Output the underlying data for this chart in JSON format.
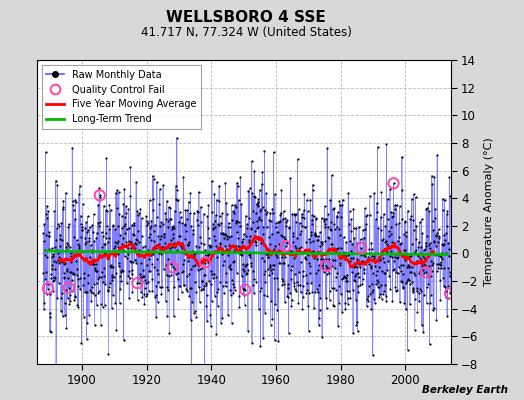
{
  "title": "WELLSBORO 4 SSE",
  "subtitle": "41.717 N, 77.324 W (United States)",
  "ylabel": "Temperature Anomaly (°C)",
  "attribution": "Berkeley Earth",
  "x_start": 1887,
  "x_end": 2014,
  "xlim": [
    1886,
    2014
  ],
  "ylim": [
    -8,
    14
  ],
  "yticks": [
    -8,
    -6,
    -4,
    -2,
    0,
    2,
    4,
    6,
    8,
    10,
    12,
    14
  ],
  "xticks": [
    1900,
    1920,
    1940,
    1960,
    1980,
    2000
  ],
  "bg_color": "#d8d8d8",
  "plot_bg_color": "#ffffff",
  "raw_line_color": "#5555ff",
  "raw_dot_color": "#000000",
  "moving_avg_color": "#ff0000",
  "trend_color": "#00bb00",
  "qc_fail_color": "#ff44aa",
  "grid_color": "#bbbbbb",
  "seed": 12,
  "noise_amplitude": 2.5,
  "trend_slope": -0.002,
  "trend_intercept_year": 1950,
  "trend_intercept_val": 0.05
}
